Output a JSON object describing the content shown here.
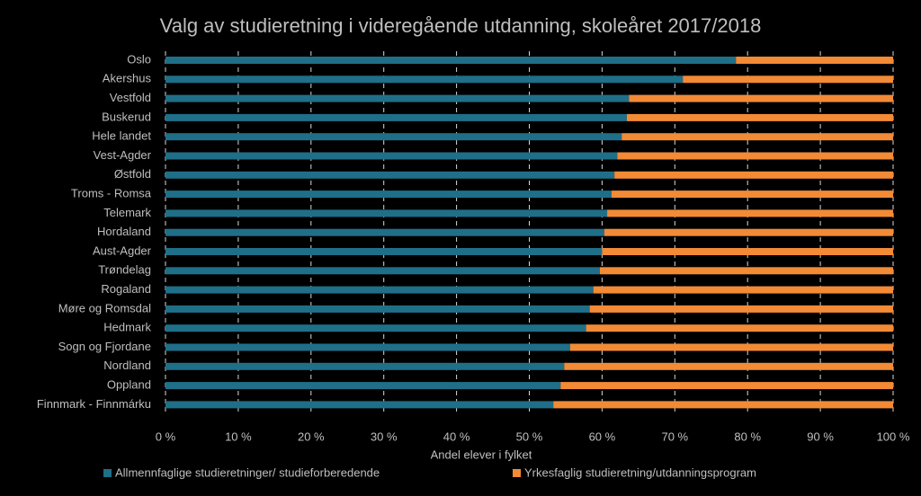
{
  "chart_data": {
    "type": "stacked_barh",
    "title": "Valg av studieretning i videregående utdanning, skoleåret 2017/2018",
    "x_label": "Andel elever i fylket",
    "categories": [
      "Oslo",
      "Akershus",
      "Vestfold",
      "Buskerud",
      "Hele landet",
      "Vest-Agder",
      "Østfold",
      "Troms - Romsa",
      "Telemark",
      "Hordaland",
      "Aust-Agder",
      "Trøndelag",
      "Rogaland",
      "Møre og Romsdal",
      "Hedmark",
      "Sogn og Fjordane",
      "Nordland",
      "Oppland",
      "Finnmark - Finnmárku"
    ],
    "series": [
      {
        "name": "Allmennfaglige studieretninger/ studieforberedende",
        "color": "#1f6f88",
        "values": [
          78.4,
          71.1,
          63.7,
          63.4,
          62.7,
          62.1,
          61.7,
          61.3,
          60.7,
          60.3,
          60.0,
          59.7,
          58.8,
          58.3,
          57.8,
          55.6,
          54.8,
          54.3,
          53.3
        ]
      },
      {
        "name": "Yrkesfaglig  studieretning/utdanningsprogram",
        "color": "#f28a36",
        "values": [
          21.6,
          28.9,
          36.3,
          36.6,
          37.3,
          37.9,
          38.3,
          38.7,
          39.3,
          39.7,
          40.0,
          40.3,
          41.2,
          41.7,
          42.2,
          44.4,
          45.2,
          45.7,
          46.7
        ]
      }
    ],
    "xlim": [
      0,
      100
    ],
    "xticks": [
      {
        "value": 0,
        "label": "0 %"
      },
      {
        "value": 10,
        "label": "10 %"
      },
      {
        "value": 20,
        "label": "20 %"
      },
      {
        "value": 30,
        "label": "30 %"
      },
      {
        "value": 40,
        "label": "40 %"
      },
      {
        "value": 50,
        "label": "50 %"
      },
      {
        "value": 60,
        "label": "60 %"
      },
      {
        "value": 70,
        "label": "70 %"
      },
      {
        "value": 80,
        "label": "80 %"
      },
      {
        "value": 90,
        "label": "90 %"
      },
      {
        "value": 100,
        "label": "100 %"
      }
    ],
    "grid": true
  }
}
